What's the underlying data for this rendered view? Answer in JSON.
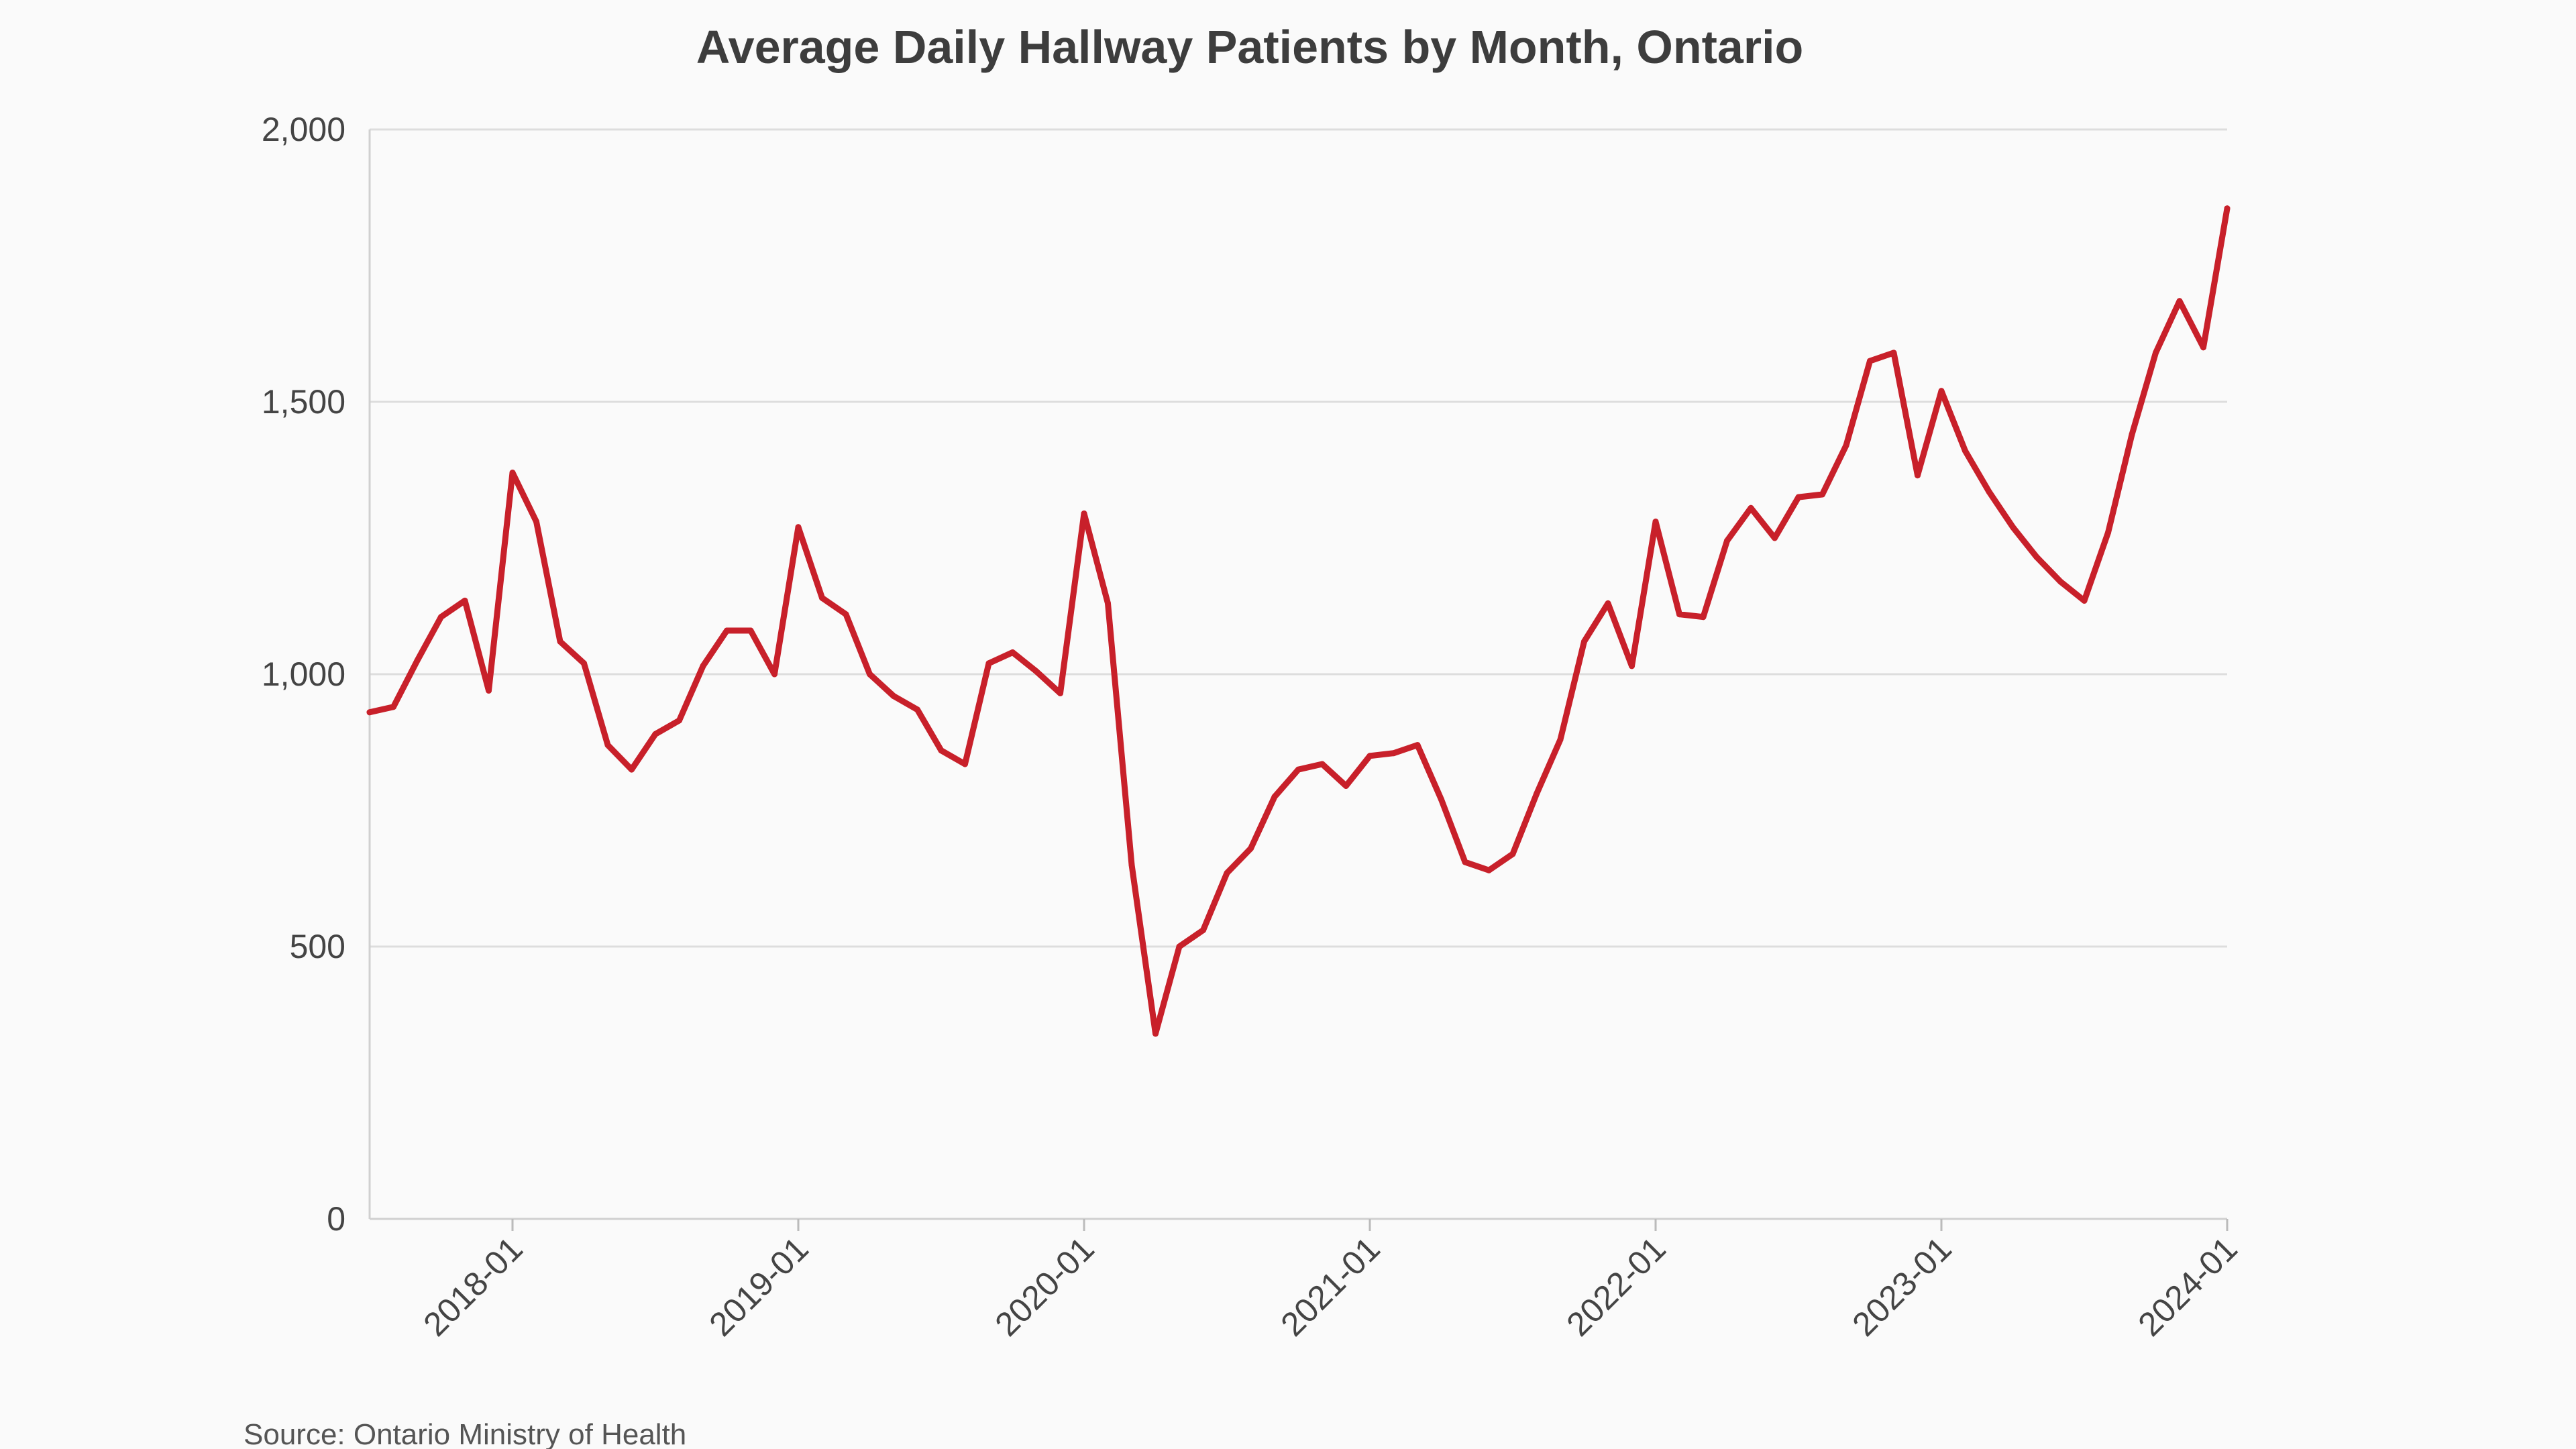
{
  "chart_data": {
    "type": "line",
    "title": "Average Daily Hallway Patients by Month, Ontario",
    "source": "Source: Ontario Ministry of Health",
    "xlabel": "",
    "ylabel": "",
    "ylim": [
      0,
      2000
    ],
    "yticks": [
      0,
      500,
      1000,
      1500,
      2000
    ],
    "ytick_labels": [
      "0",
      "500",
      "1,000",
      "1,500",
      "2,000"
    ],
    "xticks": [
      "2018-01",
      "2019-01",
      "2020-01",
      "2021-01",
      "2022-01",
      "2023-01",
      "2024-01"
    ],
    "xlim": [
      "2017-07",
      "2024-01"
    ],
    "grid": true,
    "line_color": "#c8202a",
    "series": [
      {
        "x": [
          "2017-07",
          "2017-08",
          "2017-09",
          "2017-10",
          "2017-11",
          "2017-12",
          "2018-01",
          "2018-02",
          "2018-03",
          "2018-04",
          "2018-05",
          "2018-06",
          "2018-07",
          "2018-08",
          "2018-09",
          "2018-10",
          "2018-11",
          "2018-12",
          "2019-01",
          "2019-02",
          "2019-03",
          "2019-04",
          "2019-05",
          "2019-06",
          "2019-07",
          "2019-08",
          "2019-09",
          "2019-10",
          "2019-11",
          "2019-12",
          "2020-01",
          "2020-02",
          "2020-03",
          "2020-04",
          "2020-05",
          "2020-06",
          "2020-07",
          "2020-08",
          "2020-09",
          "2020-10",
          "2020-11",
          "2020-12",
          "2021-01",
          "2021-02",
          "2021-03",
          "2021-04",
          "2021-05",
          "2021-06",
          "2021-07",
          "2021-08",
          "2021-09",
          "2021-10",
          "2021-11",
          "2021-12",
          "2022-01",
          "2022-02",
          "2022-03",
          "2022-04",
          "2022-05",
          "2022-06",
          "2022-07",
          "2022-08",
          "2022-09",
          "2022-10",
          "2022-11",
          "2022-12",
          "2023-01",
          "2023-02",
          "2023-03",
          "2023-04",
          "2023-05",
          "2023-06",
          "2023-07",
          "2023-08",
          "2023-09",
          "2023-10",
          "2023-11",
          "2023-12",
          "2024-01"
        ],
        "values": [
          930,
          940,
          1025,
          1105,
          1135,
          970,
          1370,
          1280,
          1060,
          1020,
          870,
          825,
          890,
          915,
          1015,
          1080,
          1080,
          1000,
          1270,
          1140,
          1110,
          1000,
          960,
          935,
          860,
          835,
          1020,
          1040,
          1005,
          965,
          1295,
          1130,
          650,
          340,
          500,
          530,
          635,
          680,
          775,
          825,
          835,
          795,
          850,
          855,
          870,
          770,
          655,
          640,
          670,
          780,
          880,
          1060,
          1130,
          1015,
          1280,
          1110,
          1105,
          1245,
          1305,
          1250,
          1325,
          1330,
          1420,
          1575,
          1590,
          1365,
          1520,
          1410,
          1335,
          1270,
          1215,
          1170,
          1135,
          1260,
          1440,
          1590,
          1685,
          1600,
          1855
        ]
      }
    ]
  }
}
